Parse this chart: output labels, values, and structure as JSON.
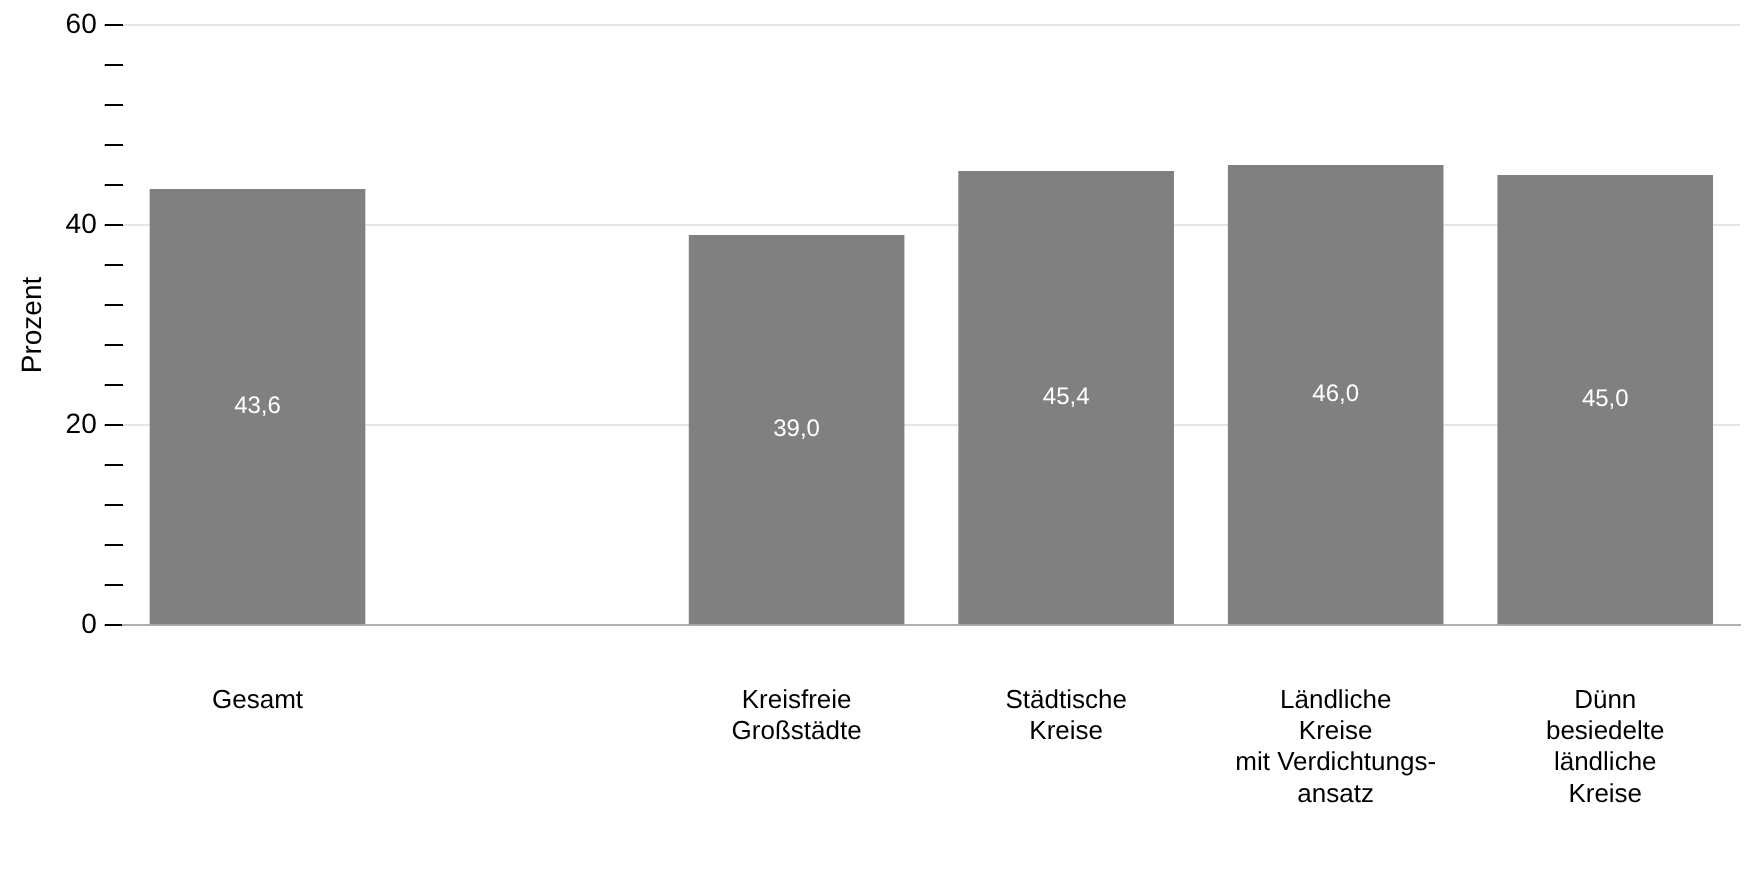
{
  "chart_data": {
    "type": "bar",
    "ylabel": "Prozent",
    "categories": [
      "Gesamt",
      null,
      "Kreisfreie\nGroßstädte",
      "Städtische\nKreise",
      "Ländliche\nKreise\nmit Verdichtungs-\nansatz",
      "Dünn\nbesiedelte\nländliche\nKreise"
    ],
    "values": [
      43.6,
      null,
      39.0,
      45.4,
      46.0,
      45.0
    ],
    "value_labels": [
      "43,6",
      null,
      "39,0",
      "45,4",
      "46,0",
      "45,0"
    ],
    "color": "#808080",
    "ylim": [
      0,
      60
    ],
    "yticks": [
      0,
      {
        "value": 4,
        "label": null
      },
      {
        "value": 8,
        "label": null
      },
      {
        "value": 12,
        "label": null
      },
      {
        "value": 16,
        "label": null
      },
      20,
      {
        "value": 24,
        "label": null
      },
      {
        "value": 28,
        "label": null
      },
      {
        "value": 32,
        "label": null
      },
      {
        "value": 36,
        "label": null
      },
      40,
      {
        "value": 44,
        "label": null
      },
      {
        "value": 48,
        "label": null
      },
      {
        "value": 52,
        "label": null
      },
      {
        "value": 56,
        "label": null
      },
      60
    ],
    "grid": "y",
    "legend": false
  }
}
